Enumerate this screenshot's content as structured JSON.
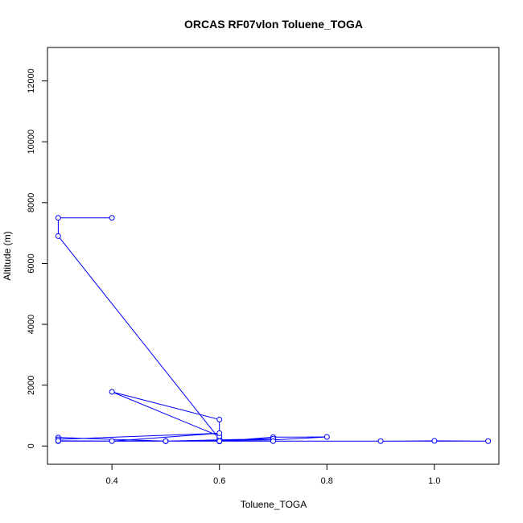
{
  "chart_data": {
    "type": "line",
    "title": "ORCAS RF07vlon Toluene_TOGA",
    "xlabel": "Toluene_TOGA",
    "ylabel": "Altitude (m)",
    "xlim": [
      0.28,
      1.12
    ],
    "ylim": [
      -600,
      13100
    ],
    "x_ticks": [
      0.4,
      0.6,
      0.8,
      1.0
    ],
    "x_tick_labels": [
      "0.4",
      "0.6",
      "0.8",
      "1.0"
    ],
    "y_ticks": [
      0,
      2000,
      4000,
      6000,
      8000,
      10000,
      12000
    ],
    "y_tick_labels": [
      "0",
      "2000",
      "4000",
      "6000",
      "8000",
      "10000",
      "12000"
    ],
    "grid": false,
    "series": [
      {
        "color": "#0000ff",
        "marker": "open-circle",
        "x": [
          0.4,
          0.3,
          0.3,
          0.6,
          0.6,
          0.4,
          0.6,
          0.6,
          0.7,
          0.8,
          0.7,
          0.5,
          0.3,
          0.3,
          0.6,
          0.4,
          0.6,
          0.7,
          0.5,
          0.3,
          0.5,
          0.9,
          1.0,
          1.1,
          0.7,
          0.5,
          0.3
        ],
        "y": [
          7500,
          7500,
          6900,
          230,
          320,
          1780,
          870,
          150,
          290,
          300,
          200,
          160,
          280,
          220,
          420,
          160,
          160,
          240,
          160,
          160,
          160,
          160,
          170,
          160,
          160,
          160,
          170
        ]
      }
    ]
  }
}
